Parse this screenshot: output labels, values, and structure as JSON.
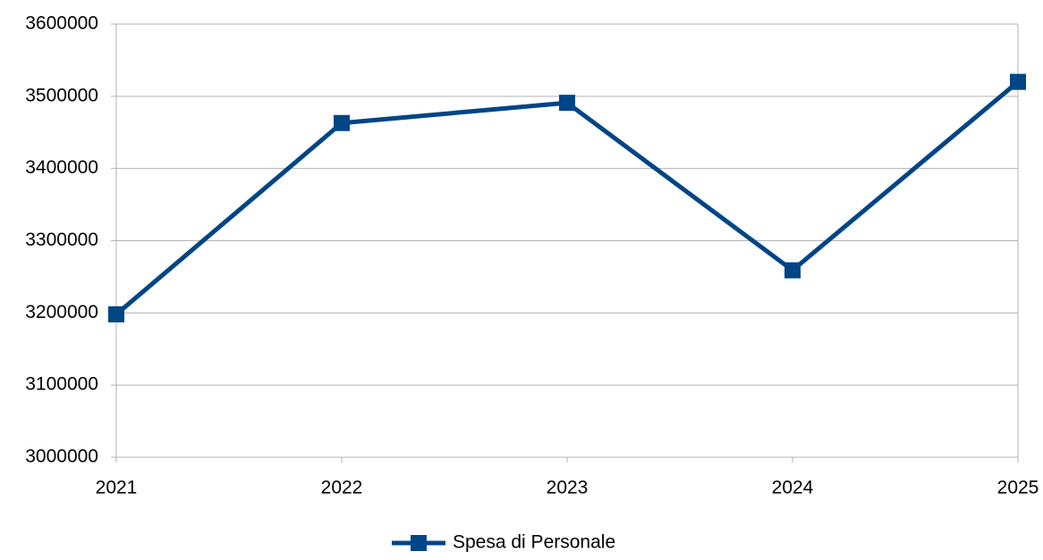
{
  "chart_data": {
    "type": "line",
    "categories": [
      "2021",
      "2022",
      "2023",
      "2024",
      "2025"
    ],
    "series": [
      {
        "name": "Spesa di Personale",
        "color": "#004586",
        "values": [
          3198000,
          3463000,
          3491000,
          3259000,
          3520000
        ]
      }
    ],
    "ylim": [
      3000000,
      3600000
    ],
    "yticks": [
      3000000,
      3100000,
      3200000,
      3300000,
      3400000,
      3500000,
      3600000
    ],
    "grid": true,
    "legend": "bottom"
  }
}
